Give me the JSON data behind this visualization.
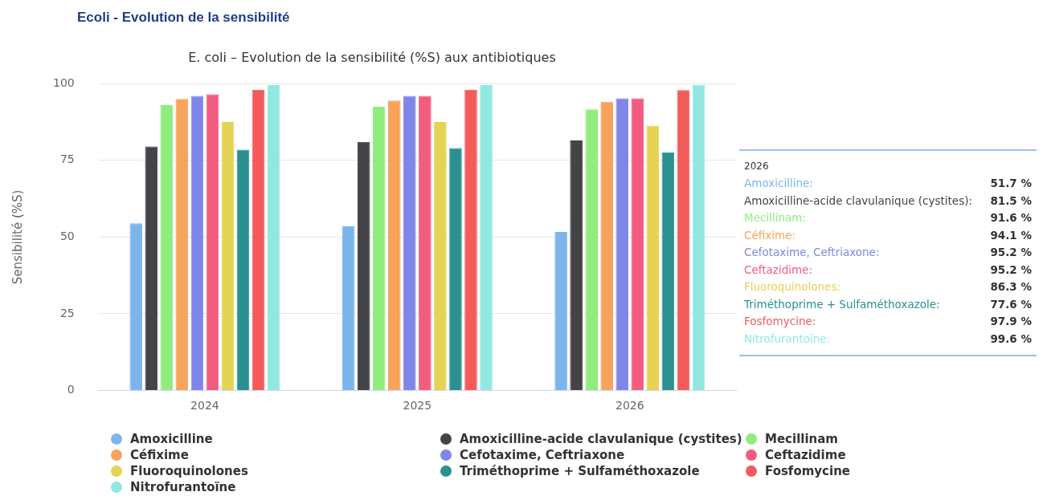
{
  "chart_data": {
    "type": "bar",
    "title": "E. coli – Evolution de la sensibilité (%S) aux antibiotiques",
    "subtitle": "Ecoli  - Evolution de la sensibilité",
    "ylabel": "Sensibilité (%S)",
    "categories": [
      "2024",
      "2025",
      "2026"
    ],
    "series": [
      {
        "name": "Amoxicilline",
        "color": "#7cb5ec",
        "values": [
          54.5,
          53.5,
          51.7
        ]
      },
      {
        "name": "Amoxicilline-acide clavulanique (cystites)",
        "color": "#434348",
        "values": [
          79.5,
          81,
          81.5
        ]
      },
      {
        "name": "Mecillinam",
        "color": "#90ed7d",
        "values": [
          93,
          92.5,
          91.6
        ]
      },
      {
        "name": "Céfixime",
        "color": "#f7a35c",
        "values": [
          95,
          94.5,
          94.1
        ]
      },
      {
        "name": "Cefotaxime, Ceftriaxone",
        "color": "#8085e9",
        "values": [
          96,
          96,
          95.2
        ]
      },
      {
        "name": "Ceftazidime",
        "color": "#f15c80",
        "values": [
          96.5,
          96,
          95.2
        ]
      },
      {
        "name": "Fluoroquinolones",
        "color": "#e4d354",
        "values": [
          87.5,
          87.5,
          86.3
        ]
      },
      {
        "name": "Triméthoprime + Sulfaméthoxazole",
        "color": "#2b908f",
        "values": [
          78.5,
          79,
          77.6
        ]
      },
      {
        "name": "Fosfomycine",
        "color": "#f45b5b",
        "values": [
          98,
          98,
          97.9
        ]
      },
      {
        "name": "Nitrofurantoïne",
        "color": "#91e8e1",
        "values": [
          99.5,
          99.5,
          99.6
        ]
      }
    ],
    "annotations": [
      "2026",
      "Amoxicilline: 51.7 %",
      "Amoxicilline-acide clavulanique (cystites): 81.5 %",
      "Mecillinam: 91.6 %",
      "Céfixime: 94.1 %",
      "Cefotaxime, Ceftriaxone: 95.2 %",
      "Ceftazidime: 95.2 %",
      "Fluoroquinolones: 86.3 %",
      "Triméthoprime + Sulfaméthoxazole: 77.6 %",
      "Fosfomycine: 97.9 %",
      "Nitrofurantoïne: 99.6 %"
    ],
    "ylim": [
      0,
      100
    ],
    "yticks": [
      0,
      25,
      50,
      75,
      100
    ],
    "grid": "y",
    "legend": "bottom"
  }
}
